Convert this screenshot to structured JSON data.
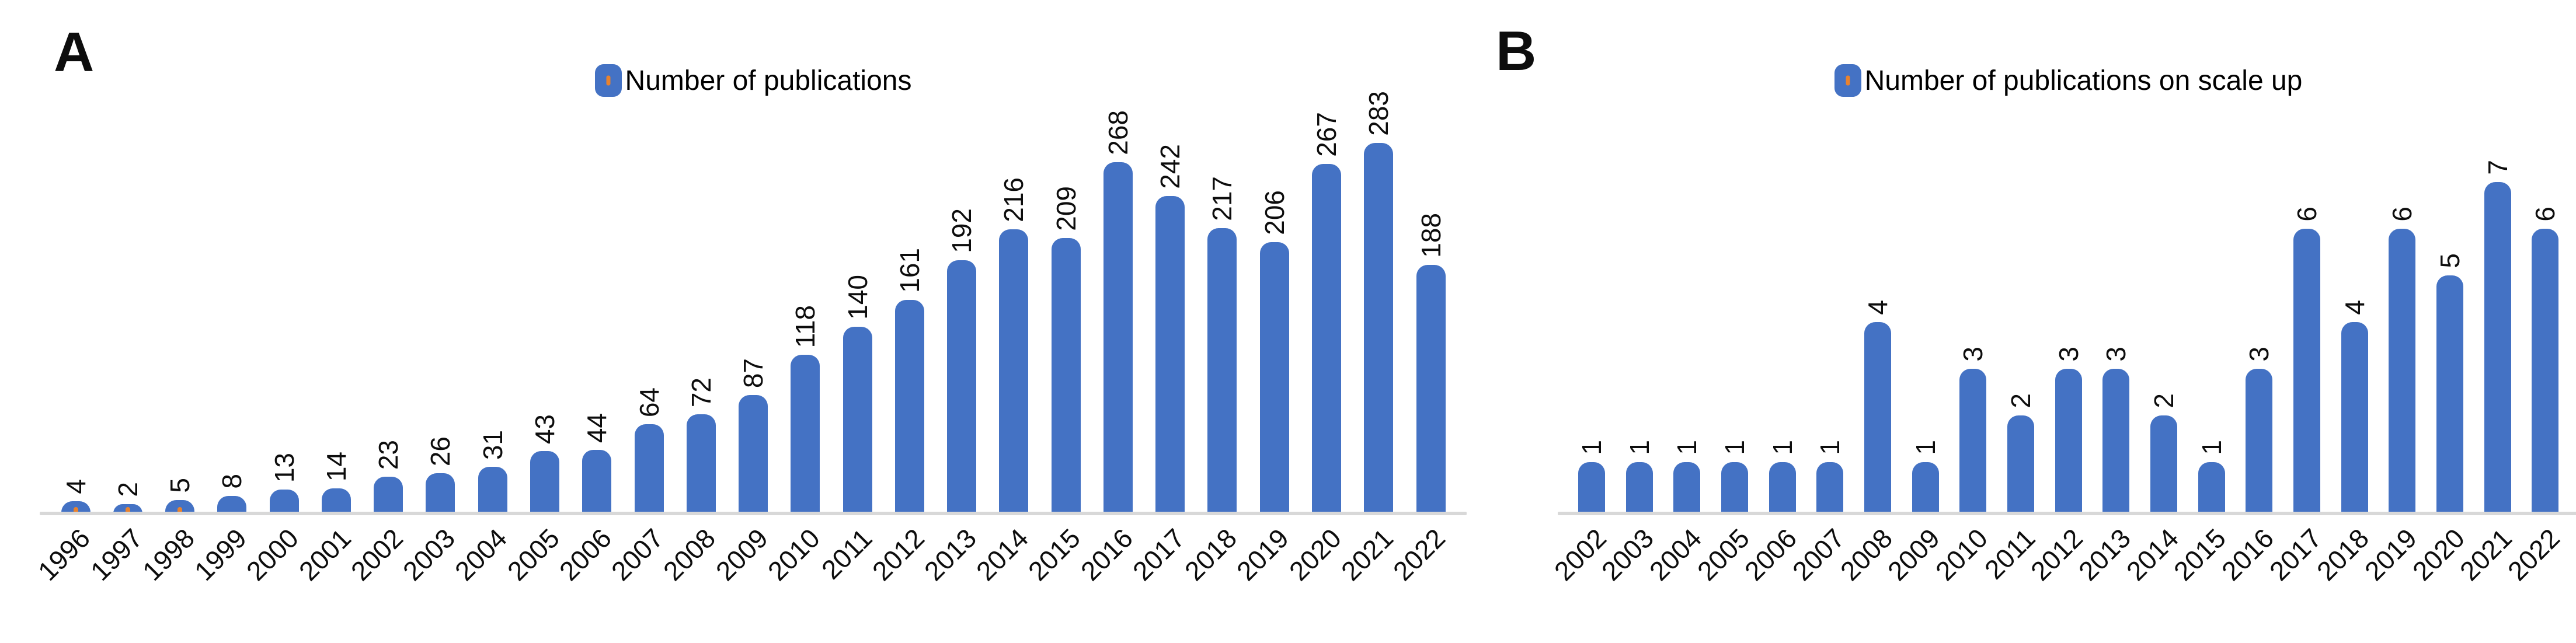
{
  "panels": [
    {
      "letter": "A"
    },
    {
      "letter": "B"
    }
  ],
  "colors": {
    "bar": "#4472C4",
    "accent_orange": "#E8822E",
    "axis_line": "#D8D8D8",
    "label_text": "#0D0D0D",
    "background": "#FFFFFF"
  },
  "chart_data": [
    {
      "id": "A",
      "type": "bar",
      "legend_label": "Number of publications",
      "legend_position": "top-center",
      "grid": false,
      "ylim": [
        0,
        300
      ],
      "value_label_rotation": -90,
      "category_label_rotation": -45,
      "categories": [
        "1996",
        "1997",
        "1998",
        "1999",
        "2000",
        "2001",
        "2002",
        "2003",
        "2004",
        "2005",
        "2006",
        "2007",
        "2008",
        "2009",
        "2010",
        "2011",
        "2012",
        "2013",
        "2014",
        "2015",
        "2016",
        "2017",
        "2018",
        "2019",
        "2020",
        "2021",
        "2022"
      ],
      "values": [
        4,
        2,
        5,
        8,
        13,
        14,
        23,
        26,
        31,
        43,
        44,
        64,
        72,
        87,
        118,
        140,
        161,
        192,
        216,
        209,
        268,
        242,
        217,
        206,
        267,
        283,
        188
      ],
      "base_accent_years": [
        "1996",
        "1997",
        "1998"
      ]
    },
    {
      "id": "B",
      "type": "bar",
      "legend_label": "Number of publications on scale up",
      "legend_position": "top-center",
      "grid": false,
      "ylim": [
        0,
        8
      ],
      "value_label_rotation": -90,
      "category_label_rotation": -45,
      "categories": [
        "2002",
        "2003",
        "2004",
        "2005",
        "2006",
        "2007",
        "2008",
        "2009",
        "2010",
        "2011",
        "2012",
        "2013",
        "2014",
        "2015",
        "2016",
        "2017",
        "2018",
        "2019",
        "2020",
        "2021",
        "2022"
      ],
      "values": [
        1,
        1,
        1,
        1,
        1,
        1,
        4,
        1,
        3,
        2,
        3,
        3,
        2,
        1,
        3,
        6,
        4,
        6,
        5,
        7,
        6
      ],
      "base_accent_years": []
    }
  ]
}
